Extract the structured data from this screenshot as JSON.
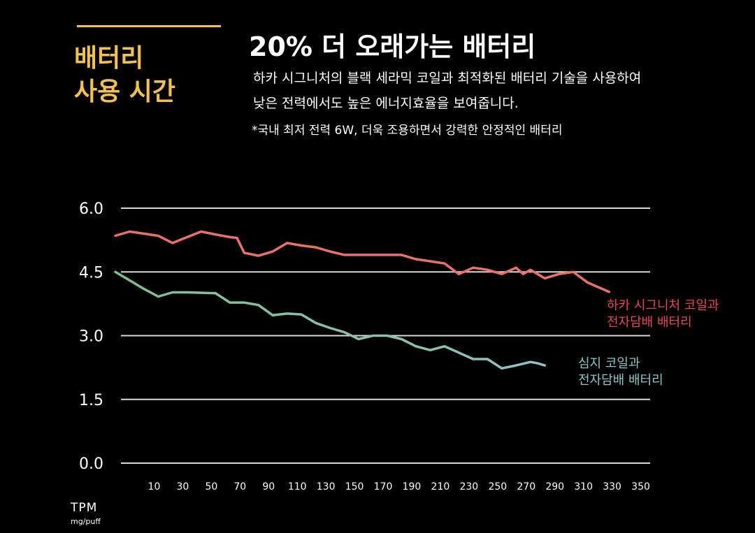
{
  "header": {
    "side_title_line1": "배터리",
    "side_title_line2": "사용 시간",
    "headline": "20%  더 오래가는 배터리",
    "description_line1": "하카 시그니처의 블랙 세라믹 코일과 최적화된 배터리 기술을 사용하여",
    "description_line2": "낮은 전력에서도 높은 에너지효율을 보여줍니다.",
    "note": "*국내 최저 전력 6W, 더욱 조용하면서 강력한 안정적인 배터리"
  },
  "colors": {
    "accent": "#f2c14e",
    "series_red": "#e8726a",
    "series_red_label": "#e8475a",
    "series_green": "#7fbf8e",
    "series_green_label": "#8fc3c6",
    "grid": "#d9d9d9"
  },
  "chart_data": {
    "type": "line",
    "ylabel": "TPM",
    "ylabel_unit": "mg/puff",
    "ylim": [
      0,
      6
    ],
    "yticks": [
      "6.0",
      "4.5",
      "3.0",
      "1.5",
      "0.0"
    ],
    "ytick_values": [
      6.0,
      4.5,
      3.0,
      1.5,
      0.0
    ],
    "xticks": [
      "10",
      "30",
      "50",
      "70",
      "90",
      "110",
      "130",
      "150",
      "170",
      "190",
      "210",
      "230",
      "250",
      "270",
      "290",
      "310",
      "330",
      "350"
    ],
    "xtick_values": [
      10,
      30,
      50,
      70,
      90,
      110,
      130,
      150,
      170,
      190,
      210,
      230,
      250,
      270,
      290,
      310,
      330,
      350
    ],
    "xlim": [
      0,
      360
    ],
    "grid": true,
    "series": [
      {
        "name_line1": "하카 시그니처 코일과",
        "name_line2": "전자담배 배터리",
        "x": [
          0,
          10,
          20,
          30,
          40,
          45,
          60,
          70,
          80,
          85,
          90,
          100,
          110,
          120,
          130,
          140,
          150,
          160,
          170,
          180,
          190,
          200,
          210,
          220,
          230,
          240,
          250,
          260,
          270,
          280,
          285,
          290,
          300,
          310,
          320,
          330,
          345
        ],
        "y": [
          5.35,
          5.45,
          5.4,
          5.35,
          5.18,
          5.25,
          5.45,
          5.38,
          5.32,
          5.3,
          4.95,
          4.88,
          4.98,
          5.18,
          5.12,
          5.08,
          4.98,
          4.9,
          4.9,
          4.9,
          4.9,
          4.9,
          4.8,
          4.75,
          4.7,
          4.45,
          4.6,
          4.55,
          4.45,
          4.6,
          4.45,
          4.55,
          4.35,
          4.45,
          4.5,
          4.25,
          4.03
        ]
      },
      {
        "name_line1": "심지 코일과",
        "name_line2": "전자담배 배터리",
        "x": [
          0,
          10,
          20,
          30,
          40,
          50,
          60,
          70,
          80,
          90,
          100,
          110,
          120,
          130,
          140,
          150,
          160,
          170,
          180,
          190,
          200,
          210,
          220,
          230,
          240,
          250,
          260,
          270,
          280,
          290,
          295,
          300
        ],
        "y": [
          4.5,
          4.3,
          4.1,
          3.92,
          4.02,
          4.02,
          4.01,
          4.0,
          3.78,
          3.78,
          3.72,
          3.48,
          3.52,
          3.5,
          3.3,
          3.18,
          3.08,
          2.92,
          3.0,
          3.0,
          2.92,
          2.75,
          2.66,
          2.75,
          2.6,
          2.45,
          2.45,
          2.23,
          2.3,
          2.38,
          2.35,
          2.3
        ]
      }
    ]
  }
}
